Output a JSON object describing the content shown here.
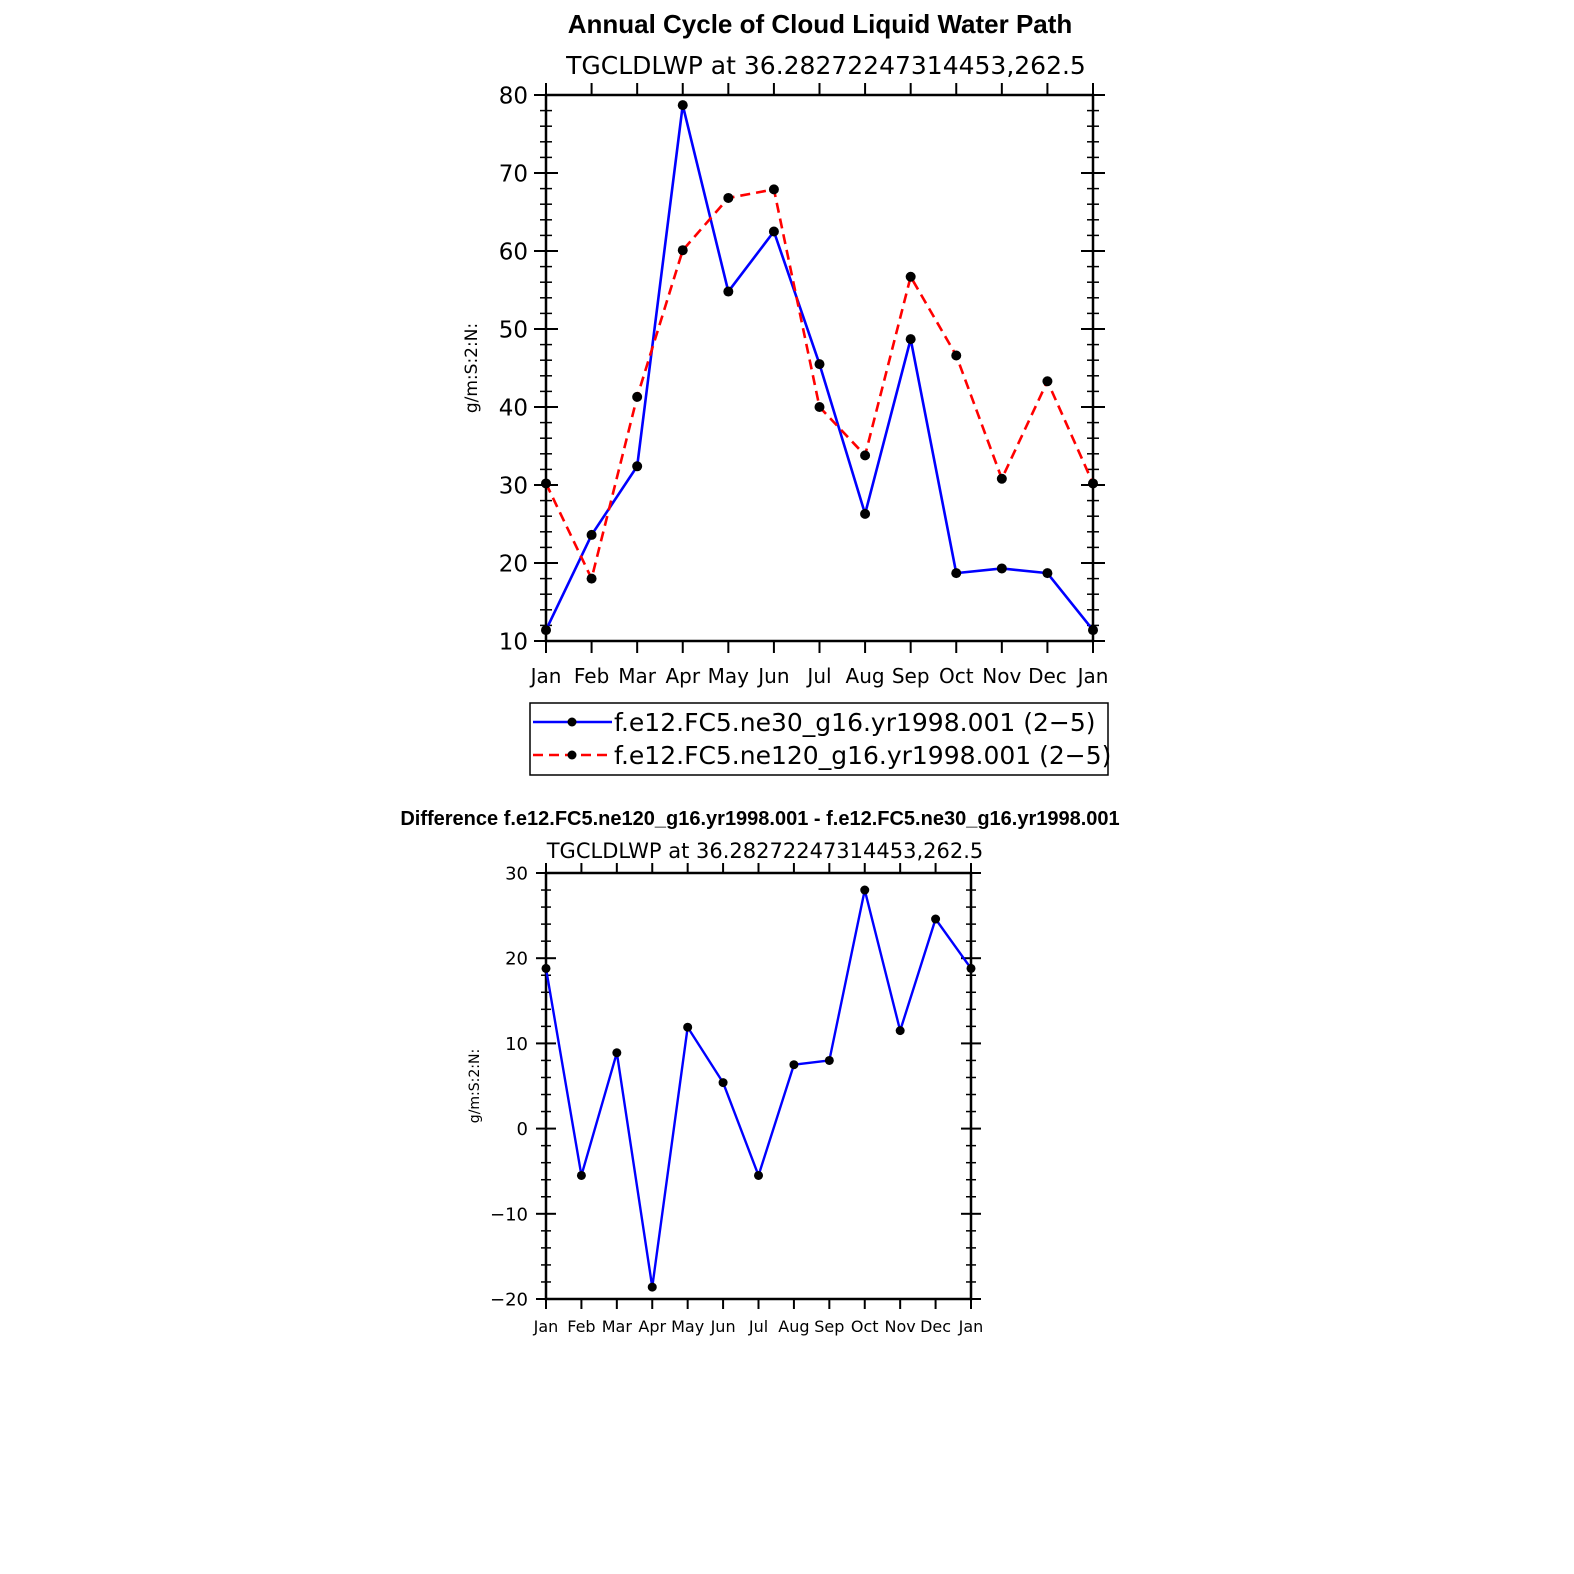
{
  "figure_title": "Annual Cycle of Cloud Liquid Water Path",
  "colors": {
    "series1": "#0000ff",
    "series2": "#ff0000",
    "marker": "#000000",
    "axes": "#000000"
  },
  "chart_data": [
    {
      "type": "line",
      "title": "Annual Cycle of Cloud Liquid Water Path",
      "subtitle": "TGCLDLWP  at  36.28272247314453,262.5",
      "xlabel": "",
      "ylabel": "g/m:S:2:N:",
      "categories": [
        "Jan",
        "Feb",
        "Mar",
        "Apr",
        "May",
        "Jun",
        "Jul",
        "Aug",
        "Sep",
        "Oct",
        "Nov",
        "Dec",
        "Jan"
      ],
      "ylim": [
        10,
        80
      ],
      "yticks": [
        "10",
        "20",
        "30",
        "40",
        "50",
        "60",
        "70",
        "80"
      ],
      "grid": false,
      "legend_placement": "bottom",
      "series": [
        {
          "name": "f.e12.FC5.ne30_g16.yr1998.001 (2−5)",
          "style": "solid",
          "color": "#0000ff",
          "values": [
            11.4,
            23.6,
            32.4,
            78.7,
            54.8,
            62.5,
            45.5,
            26.3,
            48.7,
            18.7,
            19.3,
            18.7,
            11.4
          ]
        },
        {
          "name": "f.e12.FC5.ne120_g16.yr1998.001 (2−5)",
          "style": "dashed",
          "color": "#ff0000",
          "values": [
            30.2,
            18.0,
            41.3,
            60.1,
            66.8,
            67.9,
            40.0,
            33.8,
            56.7,
            46.6,
            30.8,
            43.3,
            30.2
          ]
        }
      ]
    },
    {
      "type": "line",
      "title": "Difference f.e12.FC5.ne120_g16.yr1998.001 - f.e12.FC5.ne30_g16.yr1998.001",
      "subtitle": "TGCLDLWP  at  36.28272247314453,262.5",
      "xlabel": "",
      "ylabel": "g/m:S:2:N:",
      "categories": [
        "Jan",
        "Feb",
        "Mar",
        "Apr",
        "May",
        "Jun",
        "Jul",
        "Aug",
        "Sep",
        "Oct",
        "Nov",
        "Dec",
        "Jan"
      ],
      "ylim": [
        -20,
        30
      ],
      "yticks": [
        "−20",
        "−10",
        "0",
        "10",
        "20",
        "30"
      ],
      "grid": false,
      "series": [
        {
          "style": "solid",
          "color": "#0000ff",
          "values": [
            18.8,
            -5.5,
            8.9,
            -18.6,
            11.9,
            5.4,
            -5.5,
            7.5,
            8.0,
            28.0,
            11.5,
            24.6,
            18.8
          ]
        }
      ]
    }
  ]
}
